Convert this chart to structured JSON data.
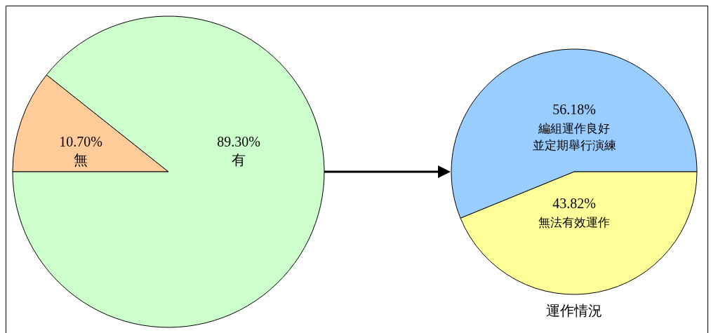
{
  "chart_data": [
    {
      "type": "pie",
      "categories": [
        "無",
        "有"
      ],
      "values": [
        10.7,
        89.3
      ],
      "colors": [
        "#ffcc99",
        "#ccffcc"
      ],
      "value_labels": [
        "10.70%",
        "89.30%"
      ]
    },
    {
      "type": "pie",
      "title": "運作情況",
      "categories": [
        "編組運作良好並定期舉行演練",
        "無法有效運作"
      ],
      "values": [
        56.18,
        43.82
      ],
      "colors": [
        "#99ccff",
        "#ffff99"
      ],
      "value_labels": [
        "56.18%",
        "43.82%"
      ]
    }
  ]
}
